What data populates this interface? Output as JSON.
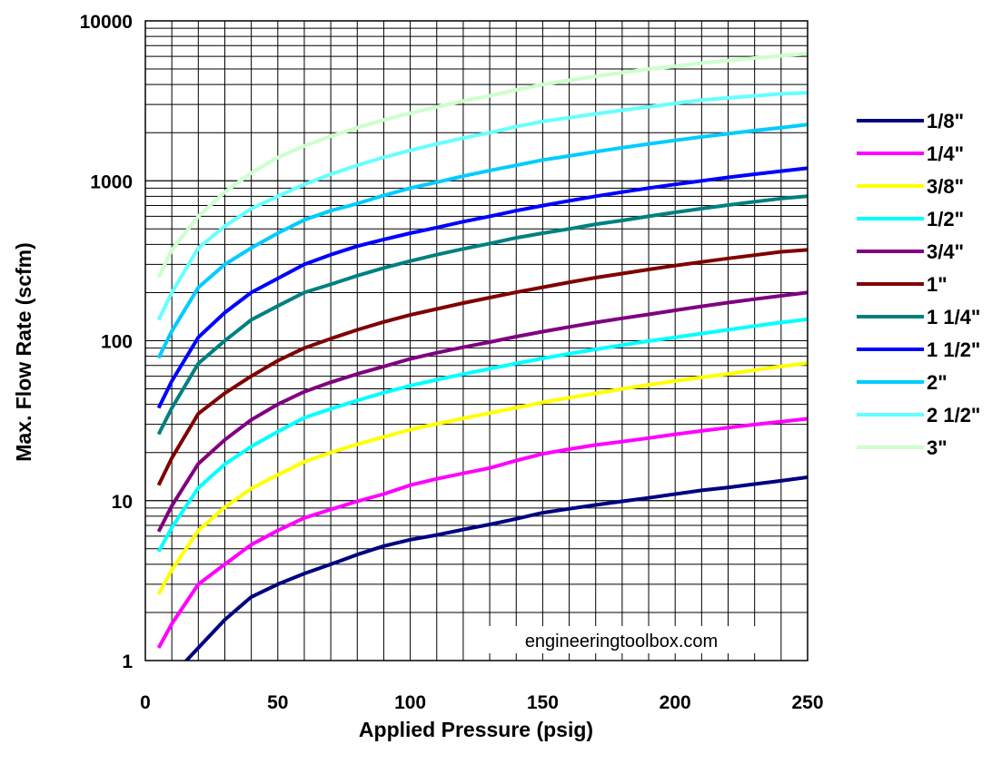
{
  "chart_data": {
    "type": "line",
    "title": "",
    "xlabel": "Applied Pressure (psig)",
    "ylabel": "Max. Flow Rate (scfm)",
    "xlim": [
      0,
      250
    ],
    "ylim": [
      1,
      10000
    ],
    "y_scale": "log",
    "grid": true,
    "legend_position": "right",
    "x_ticks": [
      "0",
      "50",
      "100",
      "150",
      "200",
      "250"
    ],
    "y_ticks": [
      "1",
      "10",
      "100",
      "1000",
      "10000"
    ],
    "annotation": "engineeringtoolbox.com",
    "x": [
      5,
      10,
      20,
      30,
      40,
      50,
      60,
      70,
      80,
      90,
      100,
      110,
      120,
      130,
      140,
      150,
      160,
      170,
      180,
      190,
      200,
      210,
      220,
      230,
      240,
      250
    ],
    "series": [
      {
        "name": "1/8\"",
        "color": "#000080",
        "values": [
          0.7,
          0.8,
          1.2,
          1.8,
          2.5,
          3.0,
          3.5,
          4.0,
          4.6,
          5.2,
          5.7,
          6.1,
          6.6,
          7.1,
          7.7,
          8.4,
          8.9,
          9.4,
          9.9,
          10.4,
          11.0,
          11.6,
          12.1,
          12.7,
          13.3,
          14.0
        ]
      },
      {
        "name": "1/4\"",
        "color": "#ff00ff",
        "values": [
          1.2,
          1.7,
          3.0,
          4.0,
          5.3,
          6.5,
          7.8,
          8.8,
          9.9,
          11.0,
          12.5,
          13.7,
          14.8,
          16.0,
          17.8,
          19.6,
          21.0,
          22.3,
          23.4,
          24.6,
          26.0,
          27.3,
          28.6,
          29.9,
          31.2,
          32.5
        ]
      },
      {
        "name": "3/8\"",
        "color": "#ffff00",
        "values": [
          2.6,
          3.7,
          6.5,
          9.1,
          11.9,
          14.5,
          17.5,
          20.0,
          22.5,
          25.0,
          27.8,
          30.2,
          32.7,
          35.3,
          38.1,
          41.2,
          44.0,
          46.8,
          50.0,
          53.0,
          56.0,
          59.0,
          62.0,
          65.5,
          69.0,
          72.5
        ]
      },
      {
        "name": "1/2\"",
        "color": "#00ffff",
        "values": [
          4.8,
          6.8,
          12.0,
          16.9,
          21.8,
          27.0,
          33.0,
          37.5,
          42.3,
          47.3,
          52.3,
          57.0,
          61.8,
          66.8,
          72.0,
          77.5,
          83.0,
          88.3,
          93.8,
          99.5,
          105.0,
          110.8,
          117.0,
          123.5,
          130.0,
          136.0
        ]
      },
      {
        "name": "3/4\"",
        "color": "#800080",
        "values": [
          6.4,
          9.3,
          17.0,
          24.0,
          32.0,
          40.0,
          48.0,
          55.0,
          62.0,
          69.0,
          77.0,
          84.0,
          91.0,
          98.0,
          106.0,
          114.0,
          122.0,
          130.0,
          138.0,
          146.0,
          155.0,
          164.0,
          173.0,
          182.0,
          191.0,
          200.0
        ]
      },
      {
        "name": "1\"",
        "color": "#800000",
        "values": [
          12.5,
          18.5,
          35.0,
          47.0,
          60.0,
          75.0,
          90.0,
          103.0,
          117.0,
          131.0,
          145.0,
          158.0,
          172.0,
          186.0,
          201.0,
          216.0,
          232.0,
          248.0,
          263.0,
          279.0,
          295.0,
          311.0,
          327.0,
          343.0,
          360.0,
          370.0
        ]
      },
      {
        "name": "1 1/4\"",
        "color": "#008080",
        "values": [
          26.0,
          38.0,
          72.0,
          100.0,
          135.0,
          165.0,
          200.0,
          225.0,
          255.0,
          285.0,
          315.0,
          345.0,
          375.0,
          405.0,
          440.0,
          470.0,
          500.0,
          535.0,
          565.0,
          600.0,
          635.0,
          670.0,
          705.0,
          740.0,
          775.0,
          800.0
        ]
      },
      {
        "name": "1 1/2\"",
        "color": "#0000ff",
        "values": [
          38.0,
          56.0,
          105.0,
          150.0,
          200.0,
          245.0,
          300.0,
          345.0,
          390.0,
          430.0,
          470.0,
          510.0,
          555.0,
          600.0,
          650.0,
          700.0,
          750.0,
          800.0,
          850.0,
          900.0,
          950.0,
          1000.0,
          1050.0,
          1100.0,
          1150.0,
          1200.0
        ]
      },
      {
        "name": "2\"",
        "color": "#00ccff",
        "values": [
          78.0,
          115.0,
          215.0,
          300.0,
          380.0,
          470.0,
          570.0,
          650.0,
          720.0,
          810.0,
          900.0,
          980.0,
          1070.0,
          1160.0,
          1250.0,
          1350.0,
          1430.0,
          1520.0,
          1610.0,
          1700.0,
          1790.0,
          1880.0,
          1970.0,
          2060.0,
          2150.0,
          2250.0
        ]
      },
      {
        "name": "2 1/2\"",
        "color": "#66ffff",
        "values": [
          135.0,
          200.0,
          380.0,
          520.0,
          670.0,
          800.0,
          950.0,
          1100.0,
          1250.0,
          1400.0,
          1550.0,
          1700.0,
          1850.0,
          2000.0,
          2180.0,
          2350.0,
          2480.0,
          2620.0,
          2760.0,
          2900.0,
          3050.0,
          3200.0,
          3300.0,
          3400.0,
          3500.0,
          3550.0
        ]
      },
      {
        "name": "3\"",
        "color": "#ccffcc",
        "values": [
          250.0,
          370.0,
          600.0,
          850.0,
          1120.0,
          1400.0,
          1650.0,
          1900.0,
          2150.0,
          2400.0,
          2650.0,
          2900.0,
          3150.0,
          3400.0,
          3700.0,
          4000.0,
          4250.0,
          4500.0,
          4750.0,
          5000.0,
          5200.0,
          5450.0,
          5650.0,
          5850.0,
          6050.0,
          6250.0
        ]
      }
    ]
  }
}
